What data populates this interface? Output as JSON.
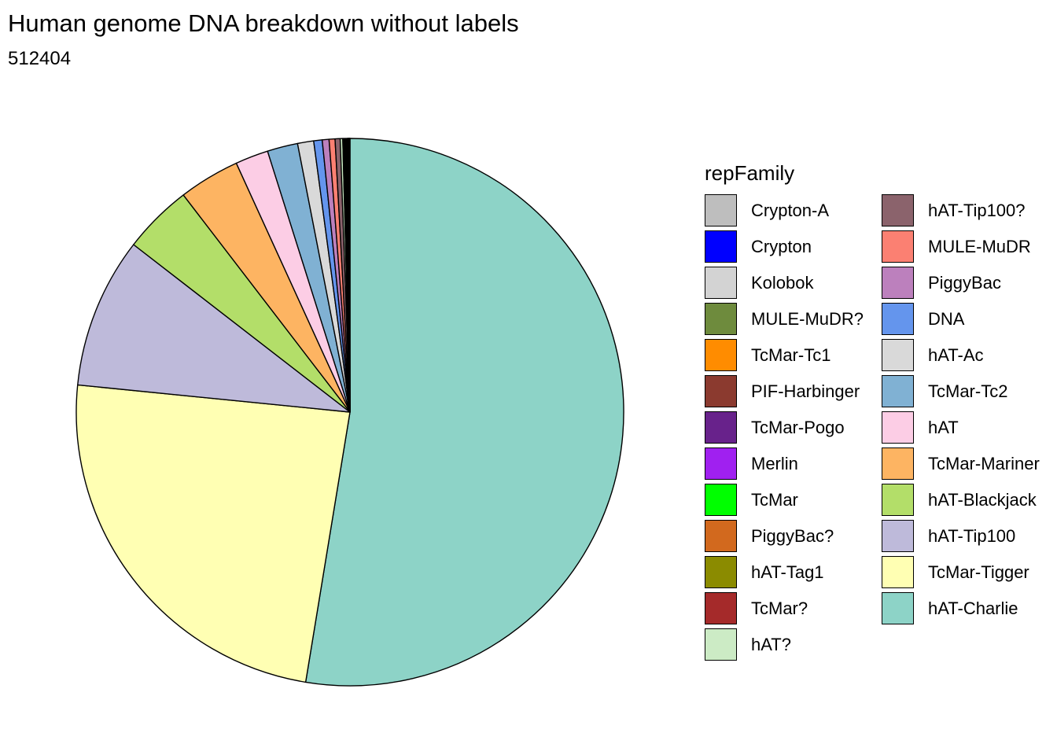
{
  "chart_data": {
    "type": "pie",
    "title": "Human genome DNA breakdown without labels",
    "subtitle": "512404",
    "legend_title": "repFamily",
    "legend_placement": "right",
    "slices": [
      {
        "name": "hAT-Charlie",
        "value": 52.6,
        "color": "#8DD3C7"
      },
      {
        "name": "TcMar-Tigger",
        "value": 24.0,
        "color": "#FFFFB3"
      },
      {
        "name": "hAT-Tip100",
        "value": 8.9,
        "color": "#BEBADA"
      },
      {
        "name": "hAT-Blackjack",
        "value": 4.1,
        "color": "#B3DE69"
      },
      {
        "name": "TcMar-Mariner",
        "value": 3.6,
        "color": "#FDB462"
      },
      {
        "name": "hAT",
        "value": 1.95,
        "color": "#FCCDE5"
      },
      {
        "name": "TcMar-Tc2",
        "value": 1.8,
        "color": "#80B1D3"
      },
      {
        "name": "hAT-Ac",
        "value": 0.95,
        "color": "#D9D9D9"
      },
      {
        "name": "DNA",
        "value": 0.5,
        "color": "#6495ED"
      },
      {
        "name": "PiggyBac",
        "value": 0.4,
        "color": "#BC80BD"
      },
      {
        "name": "MULE-MuDR",
        "value": 0.35,
        "color": "#FB8072"
      },
      {
        "name": "hAT-Tip100?",
        "value": 0.3,
        "color": "#8B636C"
      },
      {
        "name": "hAT?",
        "value": 0.15,
        "color": "#CCEBC5"
      },
      {
        "name": "TcMar?",
        "value": 0.06,
        "color": "#A52A2A"
      },
      {
        "name": "hAT-Tag1",
        "value": 0.05,
        "color": "#8B8B00"
      },
      {
        "name": "PiggyBac?",
        "value": 0.05,
        "color": "#D2691E"
      },
      {
        "name": "TcMar",
        "value": 0.04,
        "color": "#00FF00"
      },
      {
        "name": "Merlin",
        "value": 0.04,
        "color": "#A020F0"
      },
      {
        "name": "TcMar-Pogo",
        "value": 0.04,
        "color": "#68228B"
      },
      {
        "name": "PIF-Harbinger",
        "value": 0.04,
        "color": "#8B3A2F"
      },
      {
        "name": "TcMar-Tc1",
        "value": 0.03,
        "color": "#FF8C00"
      },
      {
        "name": "MULE-MuDR?",
        "value": 0.02,
        "color": "#6E8B3D"
      },
      {
        "name": "Kolobok",
        "value": 0.02,
        "color": "#D3D3D3"
      },
      {
        "name": "Crypton",
        "value": 0.02,
        "color": "#0000FF"
      },
      {
        "name": "Crypton-A",
        "value": 0.01,
        "color": "#BEBEBE"
      }
    ],
    "legend_order": [
      "Crypton-A",
      "Crypton",
      "Kolobok",
      "MULE-MuDR?",
      "TcMar-Tc1",
      "PIF-Harbinger",
      "TcMar-Pogo",
      "Merlin",
      "TcMar",
      "PiggyBac?",
      "hAT-Tag1",
      "TcMar?",
      "hAT?",
      "hAT-Tip100?",
      "MULE-MuDR",
      "PiggyBac",
      "DNA",
      "hAT-Ac",
      "TcMar-Tc2",
      "hAT",
      "TcMar-Mariner",
      "hAT-Blackjack",
      "hAT-Tip100",
      "TcMar-Tigger",
      "hAT-Charlie"
    ]
  }
}
